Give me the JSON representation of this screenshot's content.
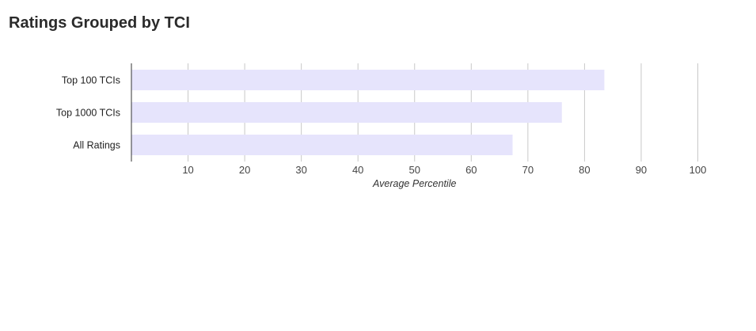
{
  "title": "Ratings Grouped by TCI",
  "chart_data": {
    "type": "bar",
    "orientation": "horizontal",
    "title": "Ratings Grouped by TCI",
    "xlabel": "Average Percentile",
    "ylabel": "",
    "categories": [
      "Top 100 TCIs",
      "Top 1000 TCIs",
      "All Ratings"
    ],
    "values": [
      83.5,
      76,
      67.3
    ],
    "xlim": [
      0,
      100
    ],
    "xticks": [
      10,
      20,
      30,
      40,
      50,
      60,
      70,
      80,
      90,
      100
    ],
    "grid": true,
    "bar_color": "#e6e4fc"
  }
}
